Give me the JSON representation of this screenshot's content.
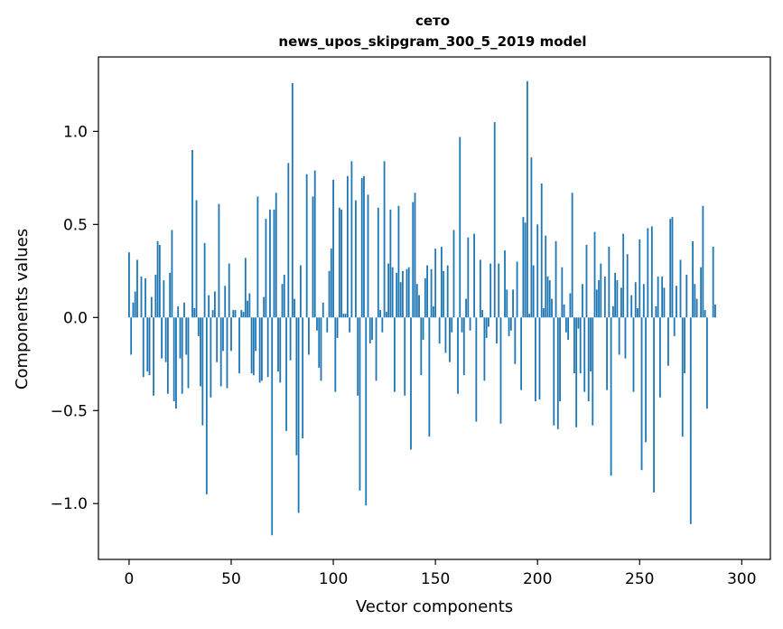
{
  "chart_data": {
    "type": "bar",
    "title_line1": "сето",
    "title_line2": "news_upos_skipgram_300_5_2019 model",
    "xlabel": "Vector components",
    "ylabel": "Components values",
    "xlim": [
      -15,
      314
    ],
    "ylim": [
      -1.3,
      1.4
    ],
    "x_ticks": [
      0,
      50,
      100,
      150,
      200,
      250,
      300
    ],
    "x_tick_labels": [
      "0",
      "50",
      "100",
      "150",
      "200",
      "250",
      "300"
    ],
    "y_ticks": [
      -1.0,
      -0.5,
      0.0,
      0.5,
      1.0
    ],
    "y_tick_labels": [
      "−1.0",
      "−0.5",
      "0.0",
      "0.5",
      "1.0"
    ],
    "grid": false,
    "bar_color": "#1f77b4",
    "values": [
      0.35,
      -0.2,
      0.08,
      0.14,
      0.31,
      0.0,
      0.22,
      -0.32,
      0.21,
      -0.29,
      -0.31,
      0.11,
      -0.42,
      0.23,
      0.41,
      0.39,
      -0.22,
      0.2,
      -0.24,
      -0.41,
      0.24,
      0.47,
      -0.45,
      -0.49,
      0.06,
      -0.22,
      -0.41,
      0.08,
      -0.2,
      -0.38,
      0.0,
      0.9,
      0.05,
      0.63,
      -0.1,
      -0.37,
      -0.58,
      0.4,
      -0.95,
      0.12,
      -0.43,
      0.04,
      0.14,
      -0.24,
      0.61,
      -0.37,
      -0.18,
      0.17,
      -0.38,
      0.29,
      -0.18,
      0.04,
      0.04,
      0.0,
      -0.3,
      0.04,
      0.03,
      0.32,
      0.09,
      0.13,
      -0.3,
      -0.31,
      -0.18,
      0.65,
      -0.35,
      -0.34,
      0.11,
      0.53,
      -0.32,
      0.58,
      -1.17,
      0.58,
      0.67,
      -0.29,
      -0.35,
      0.18,
      0.23,
      -0.61,
      0.83,
      -0.23,
      1.26,
      0.1,
      -0.74,
      -1.05,
      0.28,
      -0.65,
      0.0,
      0.77,
      -0.2,
      0.0,
      0.65,
      0.79,
      -0.07,
      -0.27,
      -0.34,
      0.08,
      0.0,
      -0.08,
      0.25,
      0.37,
      0.74,
      -0.4,
      -0.11,
      0.59,
      0.58,
      0.02,
      0.02,
      0.76,
      -0.08,
      0.84,
      0.0,
      0.63,
      -0.42,
      -0.93,
      0.75,
      0.76,
      -1.01,
      0.66,
      -0.14,
      -0.12,
      0.0,
      -0.34,
      0.59,
      0.04,
      -0.08,
      0.84,
      0.03,
      0.29,
      0.58,
      0.27,
      -0.4,
      0.24,
      0.6,
      0.19,
      0.25,
      -0.42,
      0.26,
      0.27,
      -0.71,
      0.62,
      0.67,
      0.18,
      0.12,
      -0.31,
      -0.12,
      0.21,
      0.28,
      -0.64,
      0.26,
      0.06,
      0.37,
      0.0,
      -0.14,
      0.38,
      0.25,
      -0.19,
      0.28,
      -0.24,
      -0.08,
      0.47,
      0.0,
      -0.41,
      0.97,
      -0.08,
      -0.31,
      0.1,
      0.43,
      -0.07,
      0.0,
      0.45,
      -0.56,
      0.0,
      0.31,
      0.04,
      -0.34,
      -0.11,
      -0.05,
      0.29,
      0.0,
      1.05,
      -0.14,
      0.29,
      -0.57,
      0.0,
      0.36,
      0.15,
      -0.1,
      -0.07,
      0.15,
      -0.25,
      0.3,
      0.0,
      -0.39,
      0.54,
      0.51,
      1.27,
      0.02,
      0.86,
      0.28,
      -0.45,
      0.5,
      -0.44,
      0.72,
      0.05,
      0.44,
      0.22,
      0.2,
      0.1,
      -0.58,
      0.41,
      -0.6,
      -0.45,
      0.27,
      0.07,
      -0.08,
      -0.12,
      0.13,
      0.67,
      -0.3,
      -0.59,
      -0.06,
      -0.3,
      0.18,
      -0.4,
      0.39,
      -0.45,
      -0.29,
      -0.58,
      0.46,
      0.15,
      0.2,
      0.29,
      0.0,
      0.22,
      -0.39,
      0.38,
      -0.85,
      0.06,
      0.24,
      0.2,
      -0.2,
      0.16,
      0.45,
      -0.22,
      0.34,
      0.0,
      0.12,
      -0.4,
      0.19,
      0.05,
      0.42,
      -0.82,
      0.18,
      -0.67,
      0.48,
      0.0,
      0.49,
      -0.94,
      0.06,
      0.22,
      -0.43,
      0.22,
      0.16,
      0.0,
      -0.26,
      0.53,
      0.54,
      -0.1,
      0.17,
      0.0,
      0.31,
      -0.64,
      -0.3,
      0.23,
      0.0,
      -1.11,
      0.41,
      0.18,
      0.1,
      0.0,
      0.27,
      0.6,
      0.04,
      -0.49,
      0.0,
      0.0,
      0.38,
      0.07,
      0.0
    ]
  }
}
